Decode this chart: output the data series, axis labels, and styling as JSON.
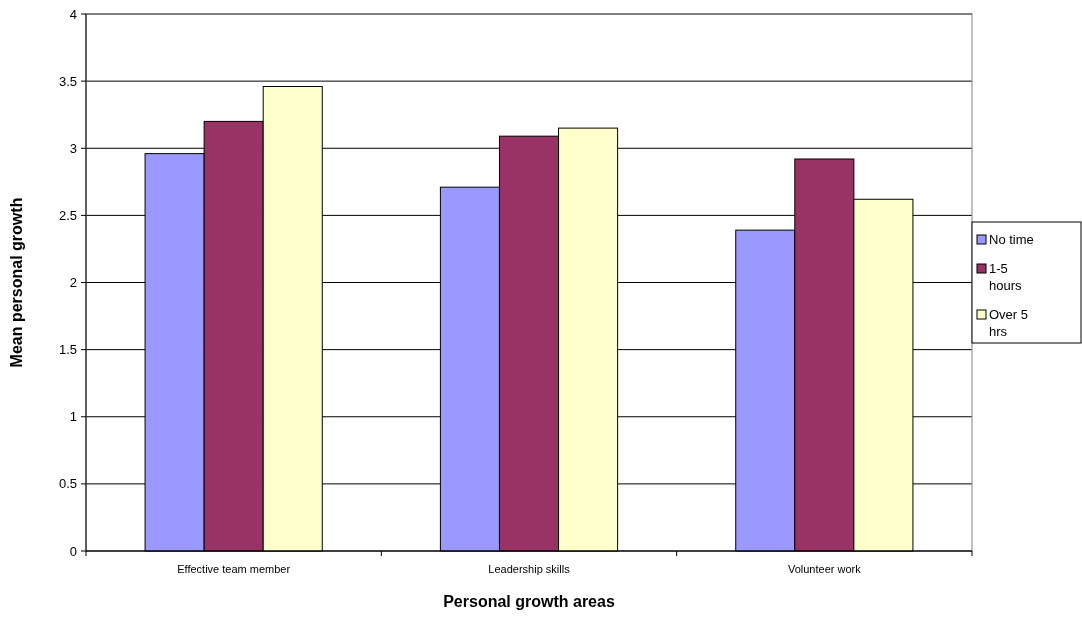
{
  "chart_data": {
    "type": "bar",
    "xlabel": "Personal growth areas",
    "ylabel": "Mean personal growth",
    "categories": [
      "Effective team member",
      "Leadership skills",
      "Volunteer work"
    ],
    "series": [
      {
        "name": "No time",
        "color": "#9999ff",
        "values": [
          2.96,
          2.71,
          2.39
        ]
      },
      {
        "name": "1-5 hours",
        "color": "#993366",
        "values": [
          3.2,
          3.09,
          2.92
        ]
      },
      {
        "name": "Over 5 hrs",
        "color": "#ffffcc",
        "values": [
          3.46,
          3.15,
          2.62
        ]
      }
    ],
    "ylim": [
      0,
      4
    ],
    "yticks": [
      0,
      0.5,
      1,
      1.5,
      2,
      2.5,
      3,
      3.5,
      4
    ],
    "grid": "y",
    "legend": "right"
  }
}
